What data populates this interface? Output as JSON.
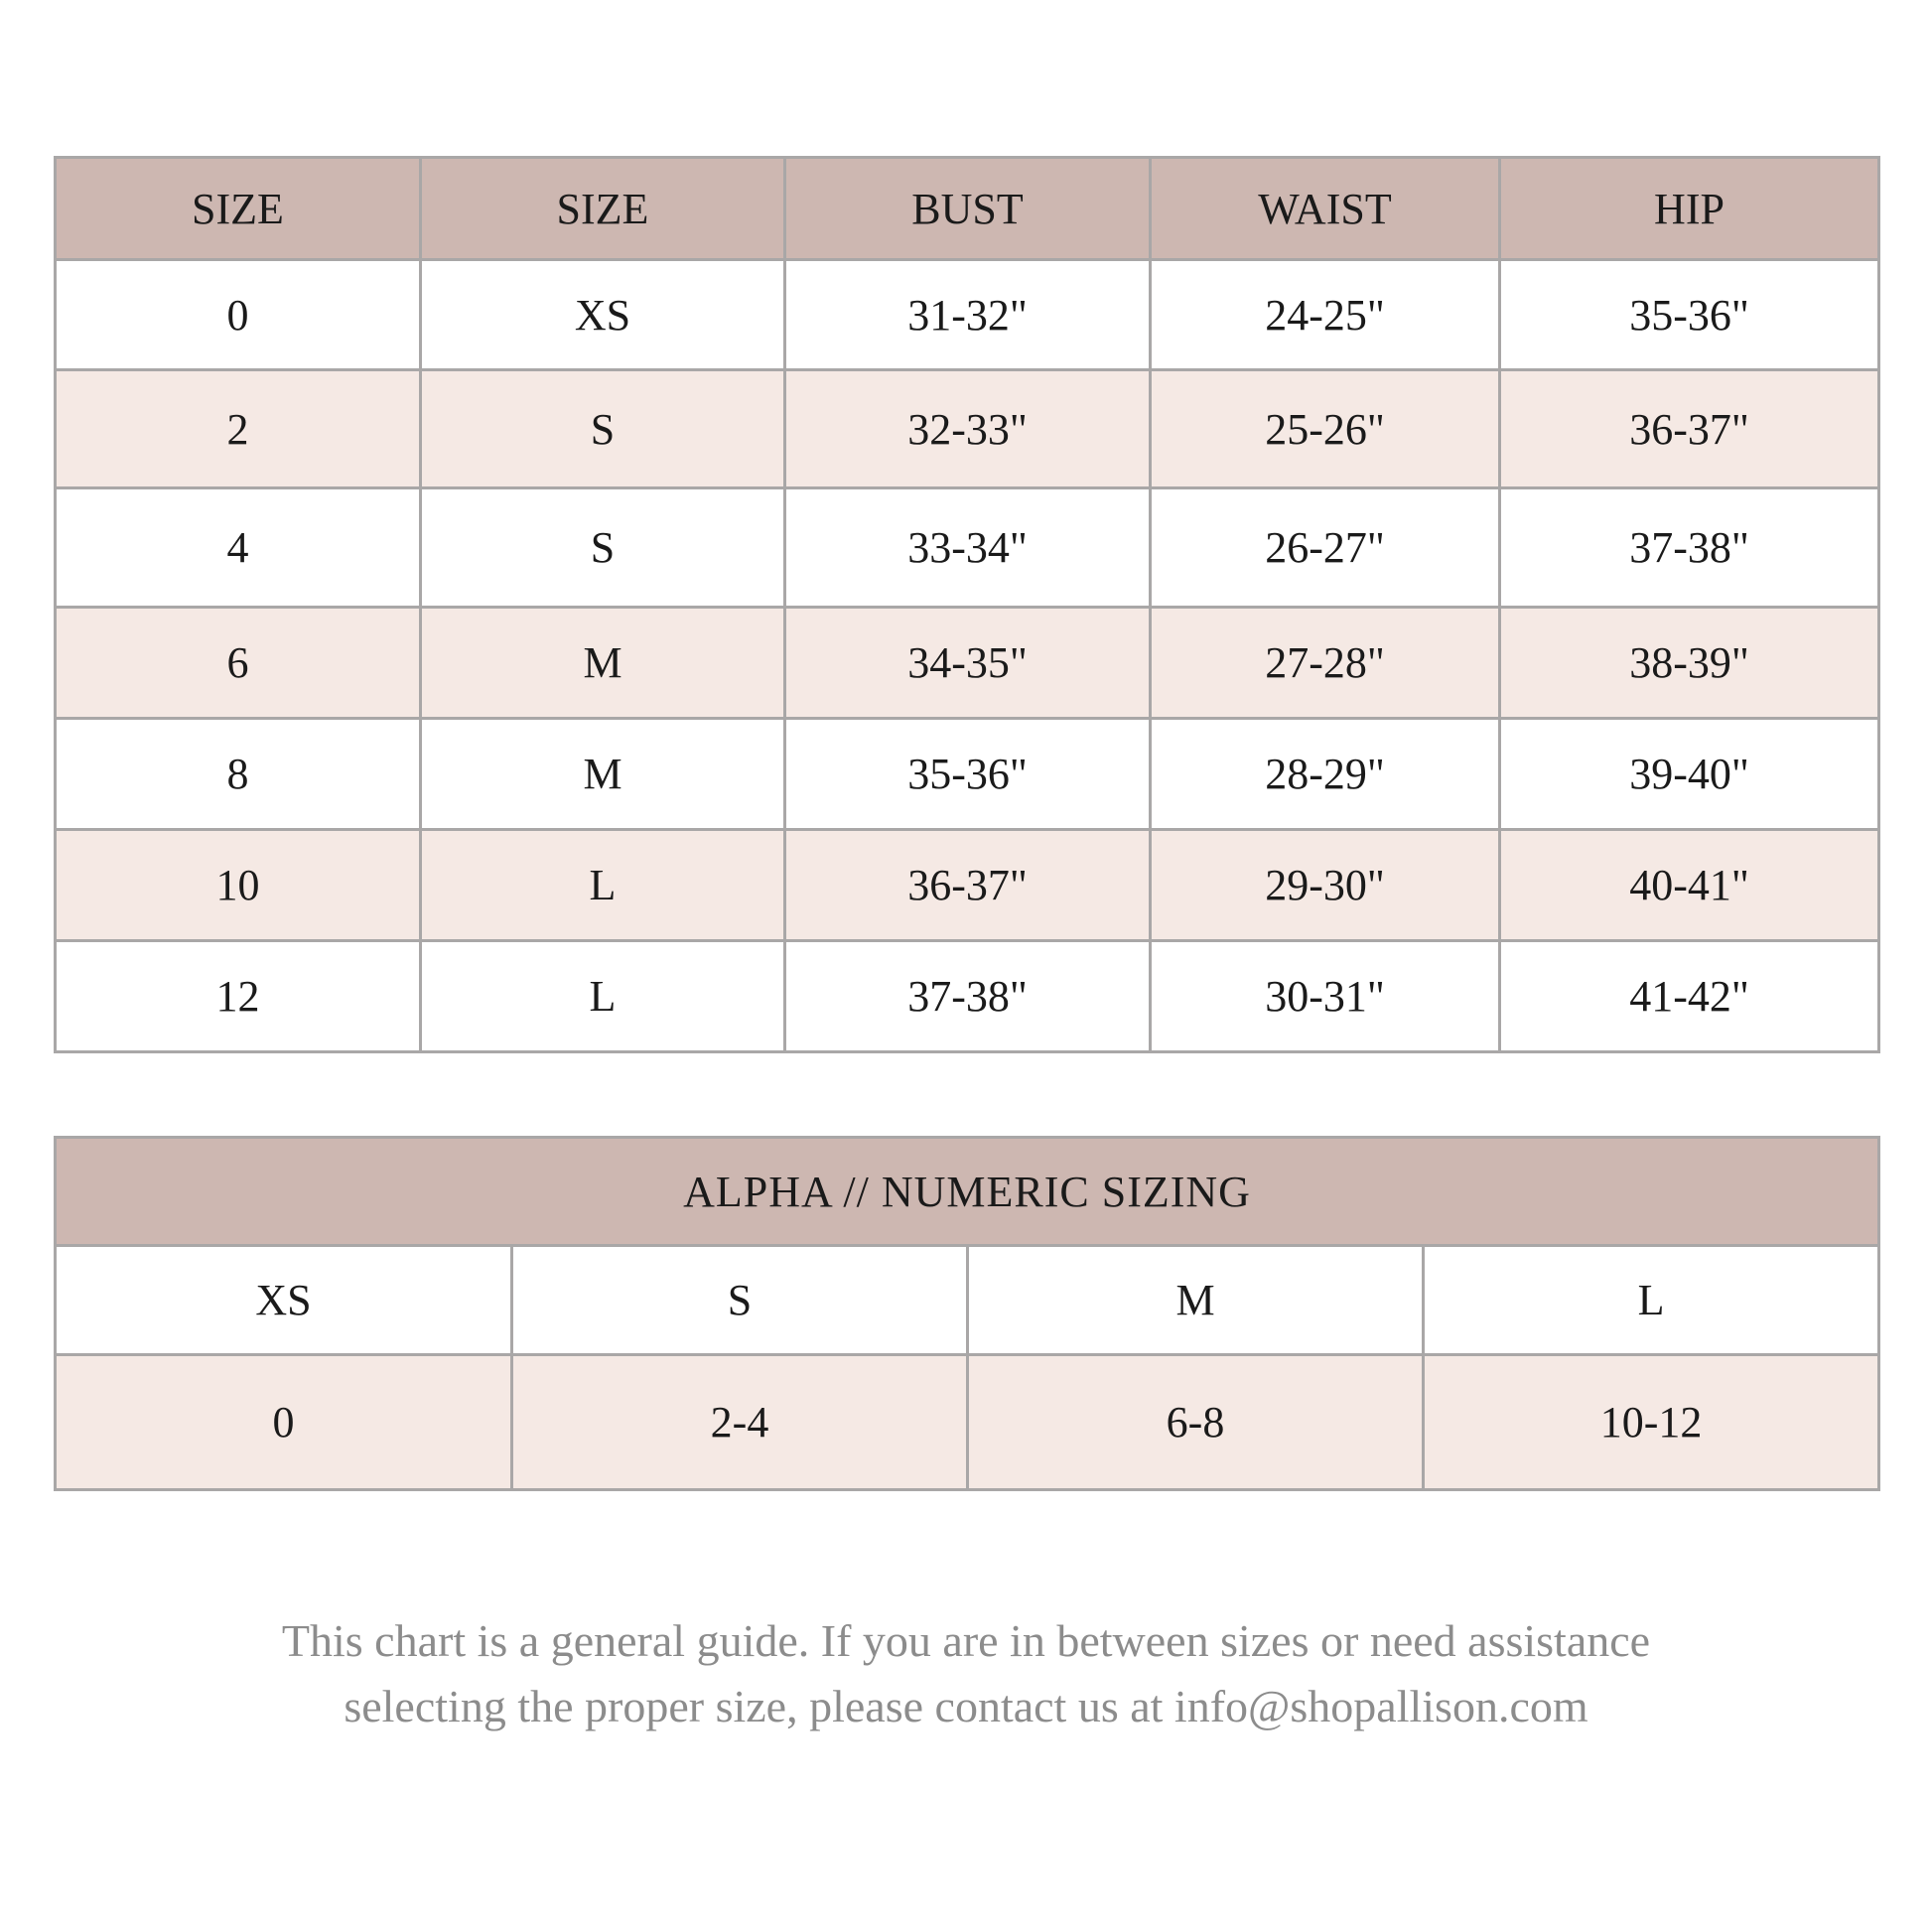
{
  "size_table": {
    "headers": [
      "SIZE",
      "SIZE",
      "BUST",
      "WAIST",
      "HIP"
    ],
    "rows": [
      [
        "0",
        "XS",
        "31-32\"",
        "24-25\"",
        "35-36\""
      ],
      [
        "2",
        "S",
        "32-33\"",
        "25-26\"",
        "36-37\""
      ],
      [
        "4",
        "S",
        "33-34\"",
        "26-27\"",
        "37-38\""
      ],
      [
        "6",
        "M",
        "34-35\"",
        "27-28\"",
        "38-39\""
      ],
      [
        "8",
        "M",
        "35-36\"",
        "28-29\"",
        "39-40\""
      ],
      [
        "10",
        "L",
        "36-37\"",
        "29-30\"",
        "40-41\""
      ],
      [
        "12",
        "L",
        "37-38\"",
        "30-31\"",
        "41-42\""
      ]
    ]
  },
  "alpha_table": {
    "title": "ALPHA // NUMERIC SIZING",
    "alpha": [
      "XS",
      "S",
      "M",
      "L"
    ],
    "numeric": [
      "0",
      "2-4",
      "6-8",
      "10-12"
    ]
  },
  "footer": {
    "line1": "This chart is a general guide. If you are in between sizes or need assistance",
    "line2": "selecting the proper size, please contact us at info@shopallison.com"
  },
  "colors": {
    "header_bg": "#cdb7b1",
    "alt_row_bg": "#f5e9e4",
    "border": "#a9a7a7",
    "footer_text": "#8c8c8c"
  }
}
